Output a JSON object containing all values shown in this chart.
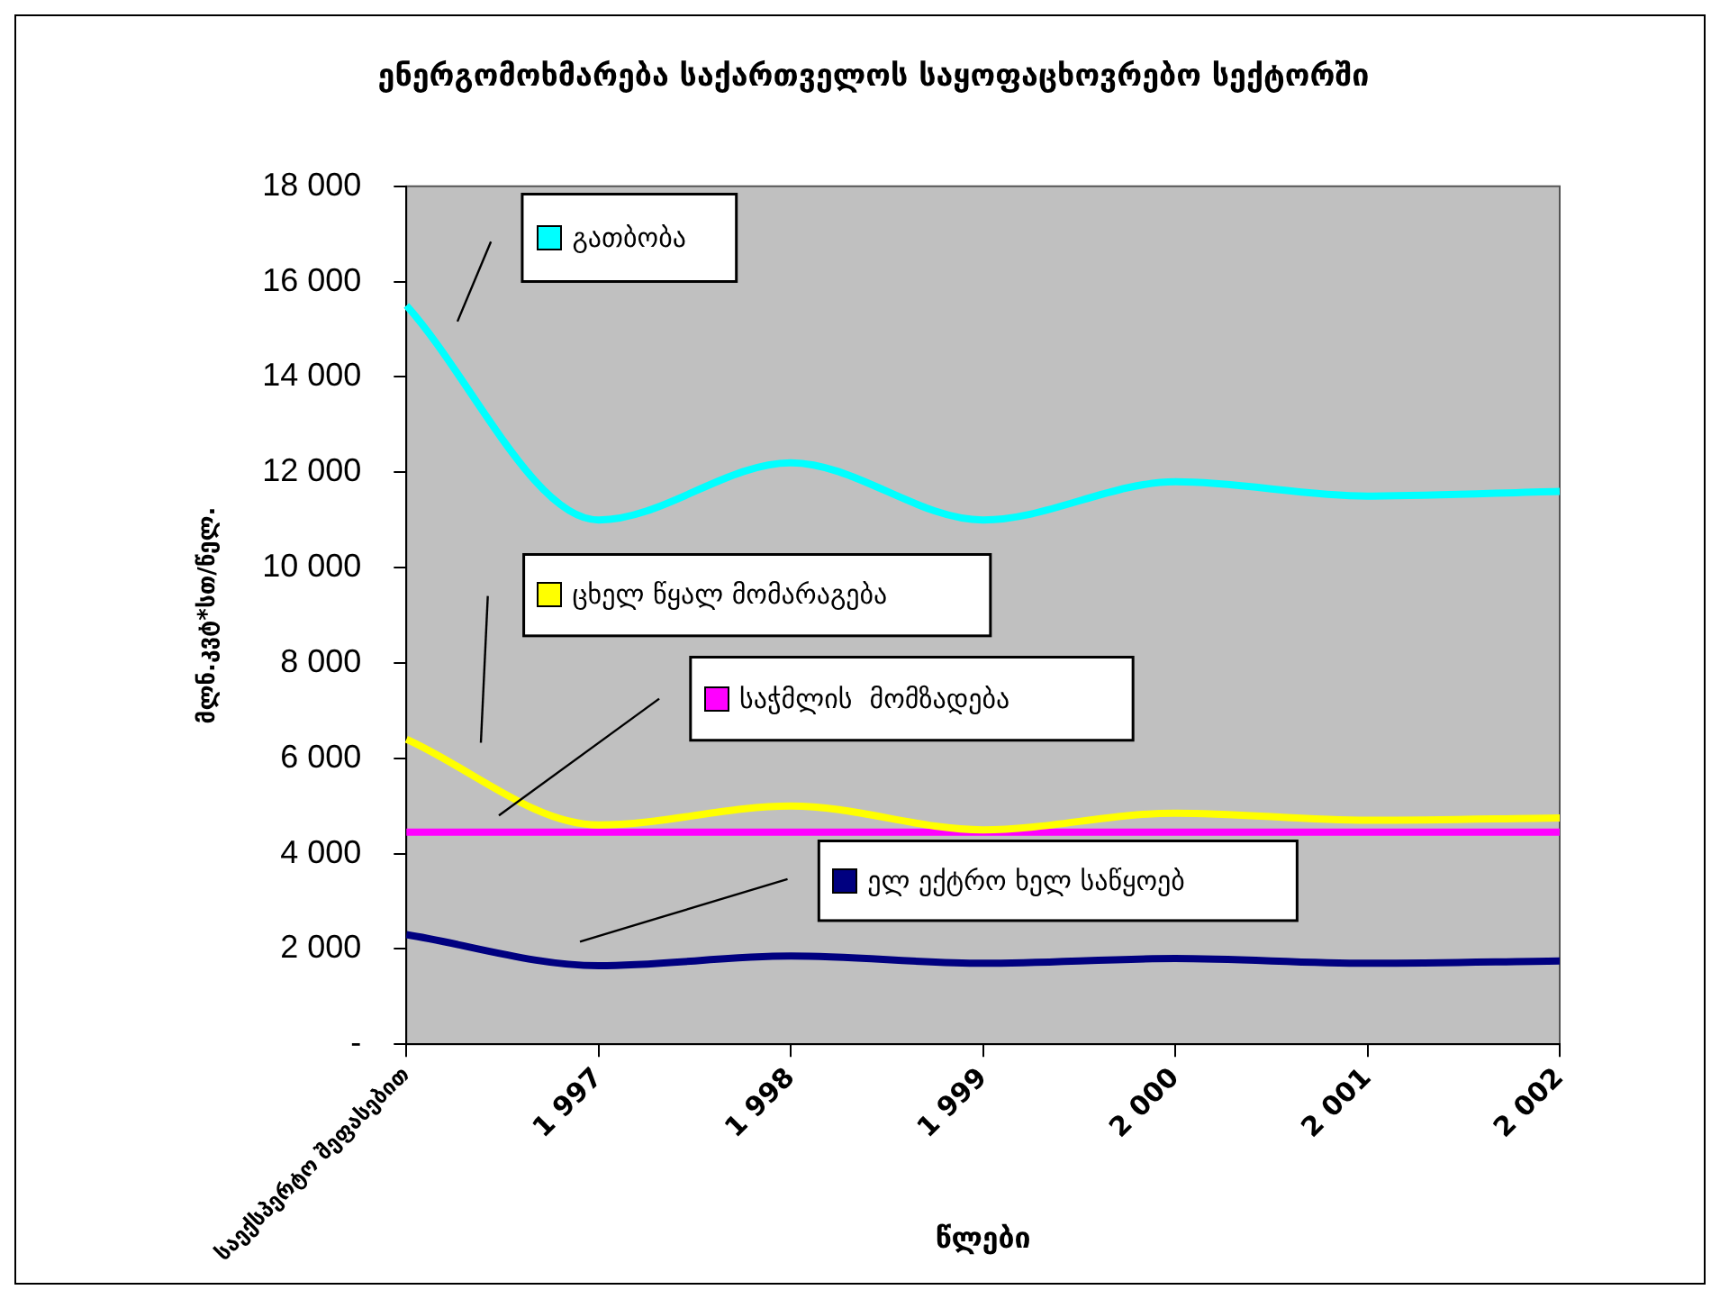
{
  "chart_data": {
    "type": "line",
    "title": "ენერგომოხმარება საქართველოს საყოფაცხოვრებო სექტორში",
    "xlabel": "წლები",
    "ylabel": "მლნ.კვტ*სთ/წელ.",
    "categories": [
      "საექსპერტო შეფასებით",
      "1 997",
      "1 998",
      "1 999",
      "2 000",
      "2 001",
      "2 002"
    ],
    "series": [
      {
        "name": "გათბობა",
        "color": "#00ffff",
        "values": [
          15500,
          11000,
          12200,
          11000,
          11800,
          11500,
          11600
        ]
      },
      {
        "name": "ცხელ წყალ მომარაგება",
        "color": "#ffff00",
        "values": [
          6400,
          4600,
          5000,
          4500,
          4850,
          4700,
          4750
        ]
      },
      {
        "name": "საჭმლის  მომზადება",
        "color": "#ff00ff",
        "values": [
          4450,
          4450,
          4450,
          4450,
          4450,
          4450,
          4450
        ]
      },
      {
        "name": "ელ ექტრო ხელ საწყოებ",
        "color": "#000080",
        "values": [
          2300,
          1650,
          1850,
          1700,
          1800,
          1700,
          1750
        ]
      }
    ],
    "ylim": [
      0,
      18000
    ],
    "yticks": [
      {
        "value": 0,
        "label": "-"
      },
      {
        "value": 2000,
        "label": "2 000"
      },
      {
        "value": 4000,
        "label": "4 000"
      },
      {
        "value": 6000,
        "label": "6 000"
      },
      {
        "value": 8000,
        "label": "8 000"
      },
      {
        "value": 10000,
        "label": "10 000"
      },
      {
        "value": 12000,
        "label": "12 000"
      },
      {
        "value": 14000,
        "label": "14 000"
      },
      {
        "value": 16000,
        "label": "16 000"
      },
      {
        "value": 18000,
        "label": "18 000"
      }
    ],
    "grid": false,
    "legend": "top left",
    "marker": "none",
    "line_style": "solid"
  }
}
